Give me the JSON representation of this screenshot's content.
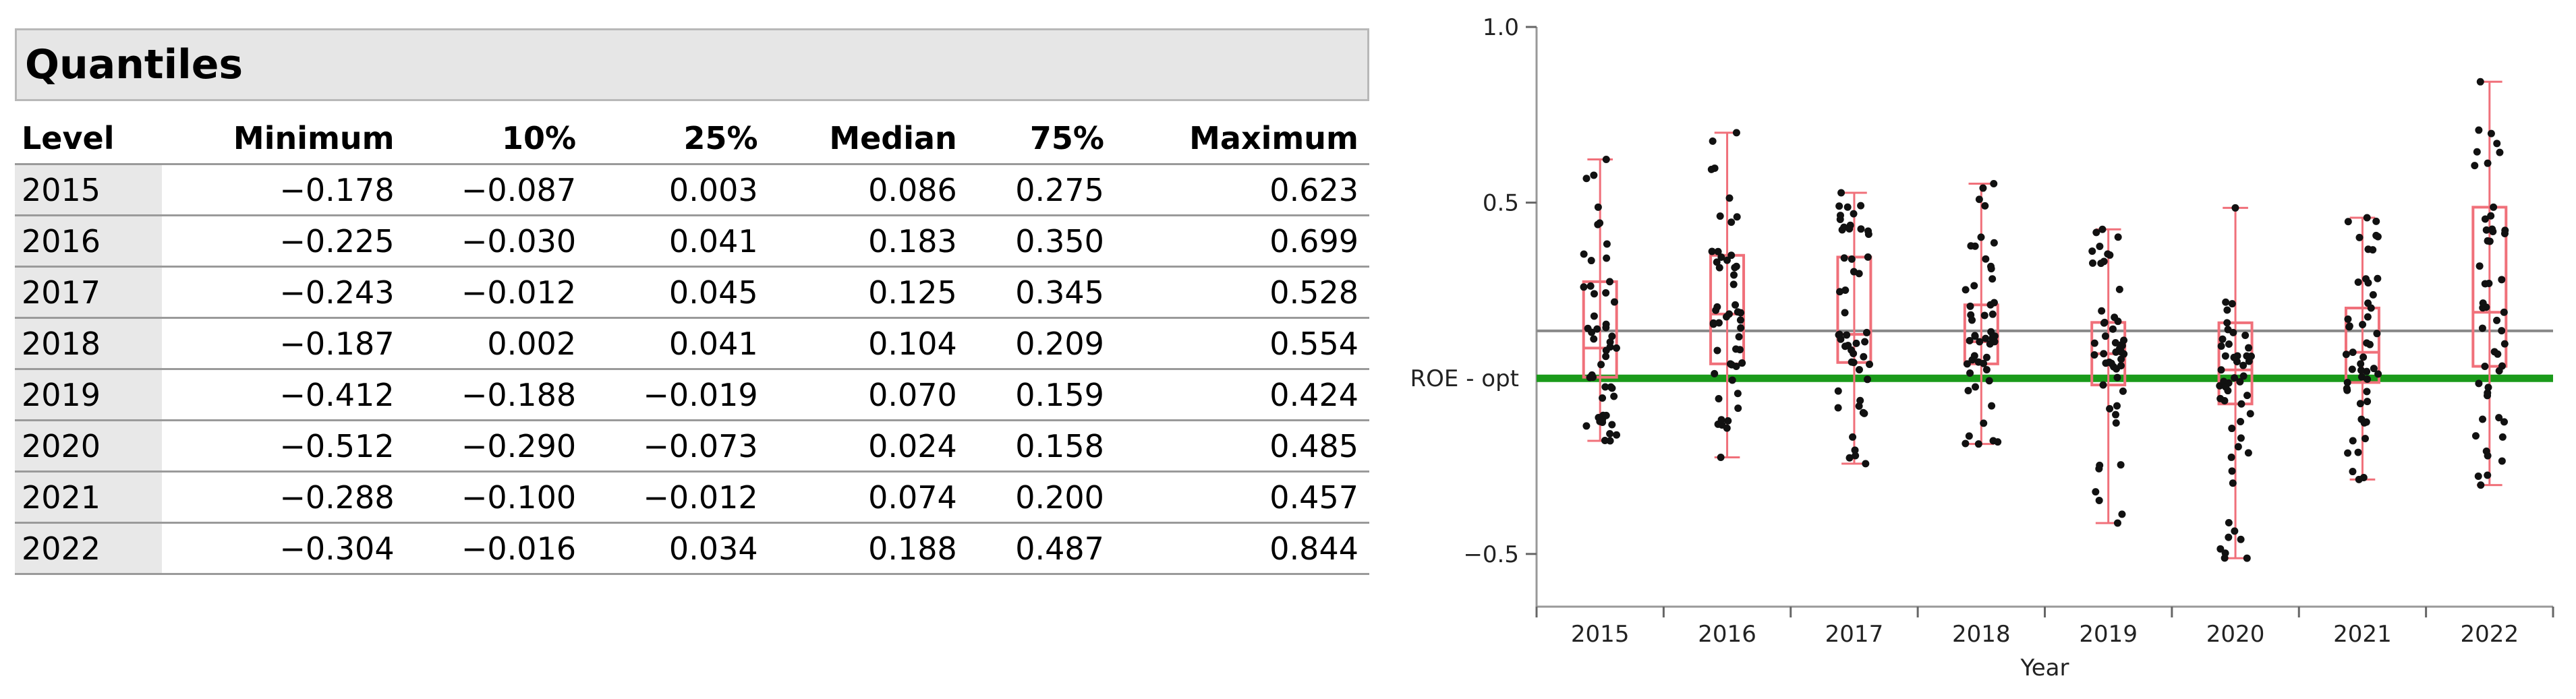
{
  "quantiles": {
    "title": "Quantiles",
    "columns": [
      "Level",
      "Minimum",
      "10%",
      "25%",
      "Median",
      "75%",
      "Maximum"
    ],
    "rows": [
      [
        "2015",
        "−0.178",
        "−0.087",
        "0.003",
        "0.086",
        "0.275",
        "0.623"
      ],
      [
        "2016",
        "−0.225",
        "−0.030",
        "0.041",
        "0.183",
        "0.350",
        "0.699"
      ],
      [
        "2017",
        "−0.243",
        "−0.012",
        "0.045",
        "0.125",
        "0.345",
        "0.528"
      ],
      [
        "2018",
        "−0.187",
        "0.002",
        "0.041",
        "0.104",
        "0.209",
        "0.554"
      ],
      [
        "2019",
        "−0.412",
        "−0.188",
        "−0.019",
        "0.070",
        "0.159",
        "0.424"
      ],
      [
        "2020",
        "−0.512",
        "−0.290",
        "−0.073",
        "0.024",
        "0.158",
        "0.485"
      ],
      [
        "2021",
        "−0.288",
        "−0.100",
        "−0.012",
        "0.074",
        "0.200",
        "0.457"
      ],
      [
        "2022",
        "−0.304",
        "−0.016",
        "0.034",
        "0.188",
        "0.487",
        "0.844"
      ]
    ]
  },
  "chart_data": {
    "type": "box",
    "xlabel": "Year",
    "ylabel": "",
    "ylim": [
      -0.65,
      1.0
    ],
    "yticks": [
      1.0,
      0.5,
      -0.5
    ],
    "ytick_labels": [
      "1.0",
      "0.5",
      "−0.5"
    ],
    "categories": [
      "2015",
      "2016",
      "2017",
      "2018",
      "2019",
      "2020",
      "2021",
      "2022"
    ],
    "boxes": [
      {
        "min": -0.178,
        "q1": 0.003,
        "median": 0.086,
        "q3": 0.275,
        "max": 0.623
      },
      {
        "min": -0.225,
        "q1": 0.041,
        "median": 0.183,
        "q3": 0.35,
        "max": 0.699
      },
      {
        "min": -0.243,
        "q1": 0.045,
        "median": 0.125,
        "q3": 0.345,
        "max": 0.528
      },
      {
        "min": -0.187,
        "q1": 0.041,
        "median": 0.104,
        "q3": 0.209,
        "max": 0.554
      },
      {
        "min": -0.412,
        "q1": -0.019,
        "median": 0.07,
        "q3": 0.159,
        "max": 0.424
      },
      {
        "min": -0.512,
        "q1": -0.073,
        "median": 0.024,
        "q3": 0.158,
        "max": 0.485
      },
      {
        "min": -0.288,
        "q1": -0.012,
        "median": 0.074,
        "q3": 0.2,
        "max": 0.457
      },
      {
        "min": -0.304,
        "q1": 0.034,
        "median": 0.188,
        "q3": 0.487,
        "max": 0.844
      }
    ],
    "reference_lines": [
      {
        "label": "ROE - opt",
        "y": 0.0,
        "color": "#1a9a1a"
      },
      {
        "label": "",
        "y": 0.135,
        "color": "#8a8a8a"
      }
    ],
    "points_per_year": 50,
    "colors": {
      "box": "#f0707a",
      "points": "#111111",
      "frame": "#999999"
    }
  }
}
